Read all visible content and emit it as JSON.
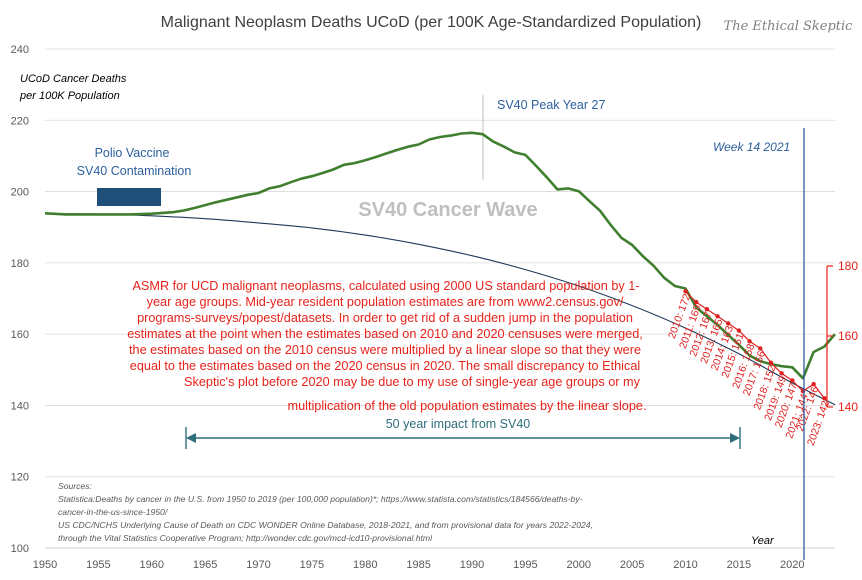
{
  "chart_data": {
    "type": "line",
    "title": "Malignant Neoplasm Deaths UCoD (per 100K Age-Standardized Population)",
    "watermark": "The Ethical Skeptic",
    "ylabel_line1": "UCoD Cancer Deaths",
    "ylabel_line2": "per 100K Population",
    "xlabel": "Year",
    "xlim": [
      1950,
      2024
    ],
    "ylim": [
      100,
      240
    ],
    "grid": true,
    "x_ticks": [
      1950,
      1955,
      1960,
      1965,
      1970,
      1975,
      1980,
      1985,
      1990,
      1995,
      2000,
      2005,
      2010,
      2015,
      2020
    ],
    "y_ticks": [
      100,
      120,
      140,
      160,
      180,
      200,
      220,
      240
    ],
    "right_axis_ticks": [
      140,
      160,
      180
    ],
    "colors": {
      "main_series": "#3f7f2f",
      "baseline": "#1f3a5a",
      "asmr": "#e02020",
      "accent_blue": "#2e5f9c",
      "annotation_red": "#e8231b",
      "arrow": "#2e6e7a",
      "gridline": "#d9d9d9"
    },
    "series": [
      {
        "x": [
          1950,
          1952,
          1955,
          1958,
          1960,
          1962,
          1963,
          1964,
          1965,
          1966,
          1967,
          1968,
          1969,
          1970,
          1971,
          1972,
          1973,
          1974,
          1975,
          1976,
          1977,
          1978,
          1979,
          1980,
          1981,
          1982,
          1983,
          1984,
          1985,
          1986,
          1987,
          1988,
          1989,
          1990,
          1991,
          1992,
          1993,
          1994,
          1995,
          1996,
          1997,
          1998,
          1999,
          2000,
          2001,
          2002,
          2003,
          2004,
          2005,
          2006,
          2007,
          2008,
          2009,
          2010,
          2011,
          2012,
          2013,
          2014,
          2015,
          2016,
          2017,
          2018,
          2019,
          2020,
          2021,
          2022,
          2023,
          2024
        ],
        "values": [
          193.9,
          193.6,
          193.6,
          193.6,
          193.8,
          194.2,
          194.7,
          195.4,
          196.2,
          197.0,
          197.7,
          198.4,
          199.1,
          199.6,
          200.9,
          201.5,
          202.6,
          203.6,
          204.3,
          205.2,
          206.2,
          207.5,
          208.0,
          208.8,
          209.7,
          210.7,
          211.7,
          212.6,
          213.2,
          214.6,
          215.3,
          215.7,
          216.3,
          216.5,
          216.1,
          214.0,
          212.6,
          211.0,
          210.3,
          207.2,
          204.0,
          200.6,
          200.9,
          200.1,
          197.3,
          194.6,
          190.6,
          187.0,
          185.0,
          181.9,
          179.2,
          175.8,
          173.5,
          172.8,
          167.5,
          165.0,
          162.6,
          159.8,
          157.0,
          154.0,
          152.4,
          151.6,
          151.0,
          150.7,
          147.6,
          155.0,
          156.5,
          160.0
        ]
      },
      {
        "x": [
          1950,
          1955,
          1960,
          1965,
          1970,
          1975,
          1980,
          1985,
          1990,
          1995,
          2000,
          2005,
          2010,
          2015,
          2020,
          2024
        ],
        "values": [
          193.8,
          193.7,
          193.2,
          192.4,
          191.2,
          189.8,
          187.8,
          185.2,
          182.0,
          178.1,
          173.5,
          168.0,
          161.7,
          154.5,
          146.3,
          140.2
        ]
      },
      {
        "x": [
          2010,
          2011,
          2012,
          2013,
          2014,
          2015,
          2016,
          2017,
          2018,
          2019,
          2020,
          2021,
          2022,
          2023
        ],
        "values": [
          172,
          169,
          167,
          165,
          163,
          161,
          158,
          156,
          152,
          149,
          147,
          144,
          146,
          142
        ]
      }
    ],
    "asmr_labels": [
      "2010: 172",
      "2011: 169",
      "2012: 167",
      "2013: 165",
      "2014: 163",
      "2015: 161",
      "2016: 158",
      "2017: 156",
      "2018: 152",
      "2019: 149",
      "2020: 147",
      "2021: 144",
      "2022: 146",
      "2023: 142"
    ],
    "annotations": {
      "polio_line1": "Polio Vaccine",
      "polio_line2": "SV40 Contamination",
      "sv40_peak": "SV40  Peak Year 27",
      "wave": "SV40 Cancer Wave",
      "week": "Week 14 2021",
      "impact": "50 year impact from SV40",
      "asmr_note": [
        "ASMR for UCD malignant neoplasms, calculated using 2000 US standard population by 1-",
        "year age groups. Mid-year resident population estimates are from www2.census.gov/",
        "programs-surveys/popest/datasets. In order to get rid of a sudden jump in the population",
        "estimates at the point when the estimates based on 2010 and 2020 censuses were merged,",
        "the estimates based on the 2010 census were multiplied by a linear slope so that they were",
        "equal to the estimates based on the 2020 census in 2020. The small discrepancy to Ethical",
        "Skeptic's plot before 2020 may be due to my use of single-year age groups or my",
        "multiplication of the old population estimates by the linear slope."
      ],
      "sources": [
        "Sources:",
        "Statistica:Deaths by cancer in the U.S. from 1950 to 2019 (per 100,000 population)*; https://www.statista.com/statistics/184566/deaths-by-",
        "cancer-in-the-us-since-1950/",
        "US CDC/NCHS Underlying Cause of Death on CDC WONDER Online Database, 2018-2021, and from provisional data for years 2022-2024,",
        "through the Vital Statistics Cooperative Program; http://wonder.cdc.gov/mcd-icd10-provisional.html"
      ]
    }
  }
}
